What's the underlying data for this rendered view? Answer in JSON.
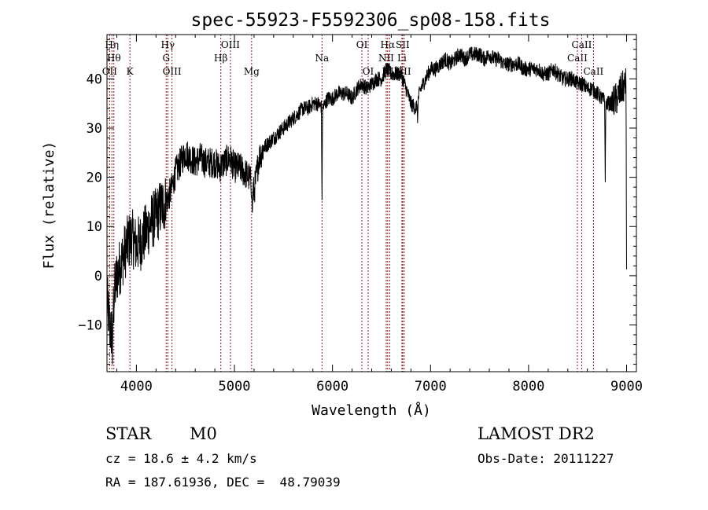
{
  "chart_data": {
    "type": "line",
    "title": "spec-55923-F5592306_sp08-158.fits",
    "xlabel": "Wavelength (Å)",
    "ylabel": "Flux (relative)",
    "xlim": [
      3700,
      9100
    ],
    "ylim": [
      -19.5,
      49
    ],
    "xticks": [
      4000,
      5000,
      6000,
      7000,
      8000,
      9000
    ],
    "yticks": [
      -10,
      0,
      10,
      20,
      30,
      40
    ],
    "xtick_labels": [
      "4000",
      "5000",
      "6000",
      "7000",
      "8000",
      "9000"
    ],
    "ytick_labels": [
      "−10",
      "0",
      "10",
      "20",
      "30",
      "40"
    ],
    "series": [
      {
        "name": "spectrum",
        "anchors": [
          [
            3700,
            -5
          ],
          [
            3740,
            -12
          ],
          [
            3780,
            -3
          ],
          [
            3800,
            0
          ],
          [
            3850,
            3
          ],
          [
            3900,
            6
          ],
          [
            3950,
            8
          ],
          [
            4000,
            6
          ],
          [
            4050,
            7
          ],
          [
            4100,
            9
          ],
          [
            4150,
            11
          ],
          [
            4200,
            12
          ],
          [
            4250,
            14
          ],
          [
            4300,
            15
          ],
          [
            4350,
            17
          ],
          [
            4400,
            21
          ],
          [
            4450,
            23
          ],
          [
            4500,
            25
          ],
          [
            4550,
            24
          ],
          [
            4600,
            23
          ],
          [
            4650,
            24
          ],
          [
            4700,
            23
          ],
          [
            4750,
            23
          ],
          [
            4800,
            23
          ],
          [
            4850,
            22
          ],
          [
            4900,
            23
          ],
          [
            4950,
            24
          ],
          [
            5000,
            22
          ],
          [
            5050,
            22
          ],
          [
            5100,
            21
          ],
          [
            5150,
            20
          ],
          [
            5200,
            17
          ],
          [
            5250,
            24
          ],
          [
            5300,
            26
          ],
          [
            5350,
            27
          ],
          [
            5400,
            28
          ],
          [
            5450,
            29
          ],
          [
            5500,
            30
          ],
          [
            5550,
            31
          ],
          [
            5600,
            32
          ],
          [
            5650,
            33
          ],
          [
            5700,
            34
          ],
          [
            5750,
            34
          ],
          [
            5800,
            35
          ],
          [
            5850,
            35
          ],
          [
            5900,
            34
          ],
          [
            5950,
            36
          ],
          [
            6000,
            36
          ],
          [
            6050,
            37
          ],
          [
            6100,
            37
          ],
          [
            6150,
            37
          ],
          [
            6200,
            36
          ],
          [
            6250,
            38
          ],
          [
            6300,
            39
          ],
          [
            6350,
            38
          ],
          [
            6400,
            39
          ],
          [
            6450,
            40
          ],
          [
            6500,
            40
          ],
          [
            6550,
            42
          ],
          [
            6600,
            41
          ],
          [
            6650,
            41
          ],
          [
            6700,
            41
          ],
          [
            6750,
            38
          ],
          [
            6800,
            35
          ],
          [
            6850,
            34
          ],
          [
            6900,
            38
          ],
          [
            6950,
            40
          ],
          [
            7000,
            42
          ],
          [
            7050,
            42
          ],
          [
            7100,
            43
          ],
          [
            7150,
            44
          ],
          [
            7200,
            43
          ],
          [
            7250,
            44
          ],
          [
            7300,
            45
          ],
          [
            7350,
            44
          ],
          [
            7400,
            45
          ],
          [
            7450,
            45
          ],
          [
            7500,
            45
          ],
          [
            7550,
            44
          ],
          [
            7600,
            45
          ],
          [
            7650,
            44
          ],
          [
            7700,
            44
          ],
          [
            7750,
            43
          ],
          [
            7800,
            43
          ],
          [
            7850,
            43
          ],
          [
            7900,
            43
          ],
          [
            7950,
            42
          ],
          [
            8000,
            42
          ],
          [
            8050,
            42
          ],
          [
            8100,
            42
          ],
          [
            8150,
            41
          ],
          [
            8200,
            41
          ],
          [
            8250,
            42
          ],
          [
            8300,
            41
          ],
          [
            8350,
            40
          ],
          [
            8400,
            40
          ],
          [
            8450,
            40
          ],
          [
            8500,
            39
          ],
          [
            8550,
            39
          ],
          [
            8600,
            38
          ],
          [
            8650,
            38
          ],
          [
            8700,
            37
          ],
          [
            8750,
            36
          ],
          [
            8800,
            35
          ],
          [
            8850,
            35
          ],
          [
            8900,
            36
          ],
          [
            8950,
            38
          ],
          [
            9000,
            39
          ]
        ],
        "dips": [
          {
            "x": 5893,
            "y": 14
          },
          {
            "x": 5182,
            "y": 12
          },
          {
            "x": 8782,
            "y": 19
          },
          {
            "x": 6868,
            "y": 31
          },
          {
            "x": 3755,
            "y": -18
          },
          {
            "x": 9000,
            "y": 0
          }
        ]
      }
    ],
    "line_markers": [
      {
        "wave": 3727,
        "label": "OII",
        "tier": 3
      },
      {
        "wave": 3750,
        "label": "Hη",
        "tier": 1
      },
      {
        "wave": 3770,
        "label": "Hθ",
        "tier": 2
      },
      {
        "wave": 3934,
        "label": "K",
        "tier": 3
      },
      {
        "wave": 4304,
        "label": "G",
        "tier": 2
      },
      {
        "wave": 4320,
        "label": "Hγ",
        "tier": 1
      },
      {
        "wave": 4363,
        "label": "OIII",
        "tier": 3
      },
      {
        "wave": 4861,
        "label": "Hβ",
        "tier": 2
      },
      {
        "wave": 4959,
        "label": "OIII",
        "tier": 1
      },
      {
        "wave": 5175,
        "label": "Mg",
        "tier": 3
      },
      {
        "wave": 5893,
        "label": "Na",
        "tier": 2
      },
      {
        "wave": 6300,
        "label": "OI",
        "tier": 1
      },
      {
        "wave": 6364,
        "label": "OI",
        "tier": 3
      },
      {
        "wave": 6548,
        "label": "NII",
        "tier": 2
      },
      {
        "wave": 6563,
        "label": "Hα",
        "tier": 1
      },
      {
        "wave": 6583,
        "label": "NII",
        "tier": 3
      },
      {
        "wave": 6708,
        "label": "Li",
        "tier": 2
      },
      {
        "wave": 6716,
        "label": "SII",
        "tier": 1
      },
      {
        "wave": 6731,
        "label": "SII",
        "tier": 3
      },
      {
        "wave": 8498,
        "label": "CaII",
        "tier": 2
      },
      {
        "wave": 8542,
        "label": "CaII",
        "tier": 1
      },
      {
        "wave": 8662,
        "label": "CaII",
        "tier": 3
      }
    ]
  },
  "info": {
    "object_class": "STAR",
    "subclass": "M0",
    "survey": "LAMOST DR2",
    "redshift": "cz = 18.6 ± 4.2 km/s",
    "obs_date": "Obs-Date: 20111227",
    "coords": "RA = 187.61936, DEC =  48.79039"
  },
  "colors": {
    "spectrum": "#000000",
    "markers": "#8b1a1a",
    "axes": "#000000"
  }
}
